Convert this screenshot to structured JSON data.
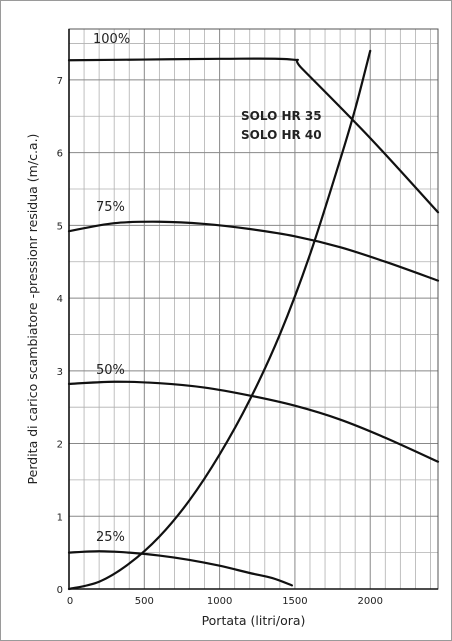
{
  "chart_data": {
    "type": "line",
    "xlabel": "Portata (litri/ora)",
    "ylabel": "Perdita di carico scambiatore -pressionr residua (m/c.a.)",
    "xlim": [
      0,
      2450
    ],
    "ylim": [
      0,
      7.7
    ],
    "x_ticks": [
      0,
      500,
      1000,
      1500,
      2000
    ],
    "x_tick_labels": [
      "0",
      "500",
      "1000",
      "1500",
      "2000"
    ],
    "y_ticks": [
      0,
      1,
      2,
      3,
      4,
      5,
      6,
      7
    ],
    "y_tick_labels": [
      "0",
      "1",
      "2",
      "3",
      "4",
      "5",
      "6",
      "7"
    ],
    "grid": true,
    "annotation_lines": [
      "SOLO HR 35",
      "SOLO HR 40"
    ],
    "series": [
      {
        "name": "100%",
        "x": [
          0,
          500,
          1000,
          1480,
          1550,
          2000,
          2450
        ],
        "y": [
          7.27,
          7.28,
          7.29,
          7.28,
          7.15,
          6.2,
          5.18
        ]
      },
      {
        "name": "75%",
        "x": [
          0,
          300,
          600,
          900,
          1200,
          1500,
          1800,
          2100,
          2450
        ],
        "y": [
          4.92,
          5.03,
          5.05,
          5.02,
          4.95,
          4.85,
          4.7,
          4.5,
          4.24
        ]
      },
      {
        "name": "50%",
        "x": [
          0,
          300,
          600,
          900,
          1200,
          1500,
          1800,
          2100,
          2450
        ],
        "y": [
          2.82,
          2.85,
          2.83,
          2.77,
          2.66,
          2.52,
          2.33,
          2.08,
          1.75
        ]
      },
      {
        "name": "25%",
        "x": [
          0,
          200,
          400,
          600,
          800,
          1000,
          1200,
          1350,
          1480
        ],
        "y": [
          0.5,
          0.52,
          0.5,
          0.46,
          0.4,
          0.32,
          0.22,
          0.15,
          0.05
        ]
      },
      {
        "name": "",
        "x": [
          0,
          200,
          400,
          600,
          800,
          1000,
          1200,
          1400,
          1600,
          1800,
          1900,
          2000
        ],
        "y": [
          0.0,
          0.1,
          0.35,
          0.72,
          1.22,
          1.85,
          2.6,
          3.5,
          4.6,
          5.9,
          6.6,
          7.4
        ]
      }
    ]
  }
}
